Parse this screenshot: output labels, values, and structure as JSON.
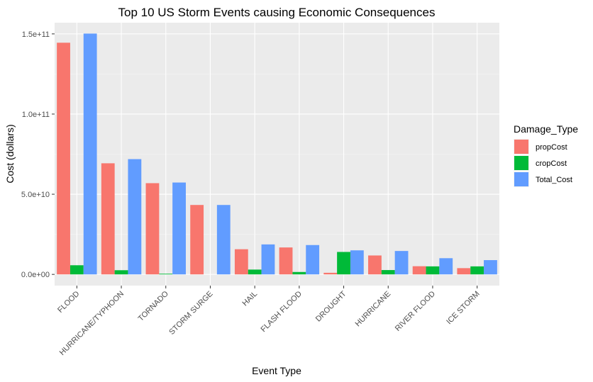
{
  "chart_data": {
    "type": "bar",
    "title": "Top 10 US Storm Events causing Economic Consequences",
    "xlabel": "Event Type",
    "ylabel": "Cost (dollars)",
    "categories": [
      "FLOOD",
      "HURRICANE/TYPHOON",
      "TORNADO",
      "STORM SURGE",
      "HAIL",
      "FLASH FLOOD",
      "DROUGHT",
      "HURRICANE",
      "RIVER FLOOD",
      "ICE STORM"
    ],
    "series": [
      {
        "name": "propCost",
        "color": "#F8766D",
        "values": [
          144500000000,
          69300000000,
          56900000000,
          43300000000,
          15700000000,
          16800000000,
          1000000000,
          11800000000,
          5100000000,
          3900000000
        ]
      },
      {
        "name": "cropCost",
        "color": "#00BA38",
        "values": [
          5700000000,
          2600000000,
          400000000,
          0,
          3000000000,
          1500000000,
          14000000000,
          2700000000,
          5000000000,
          5000000000
        ]
      },
      {
        "name": "Total_Cost",
        "color": "#619CFF",
        "values": [
          150200000000,
          71900000000,
          57300000000,
          43300000000,
          18700000000,
          18300000000,
          15000000000,
          14600000000,
          10100000000,
          8900000000
        ]
      }
    ],
    "yticks": [
      0,
      50000000000,
      100000000000,
      150000000000
    ],
    "ytick_labels": [
      "0.0e+00",
      "5.0e+10",
      "1.0e+11",
      "1.5e+11"
    ],
    "ylim": [
      -7000000000,
      157000000000
    ],
    "grid": true,
    "legend": {
      "title": "Damage_Type",
      "position": "right"
    }
  }
}
